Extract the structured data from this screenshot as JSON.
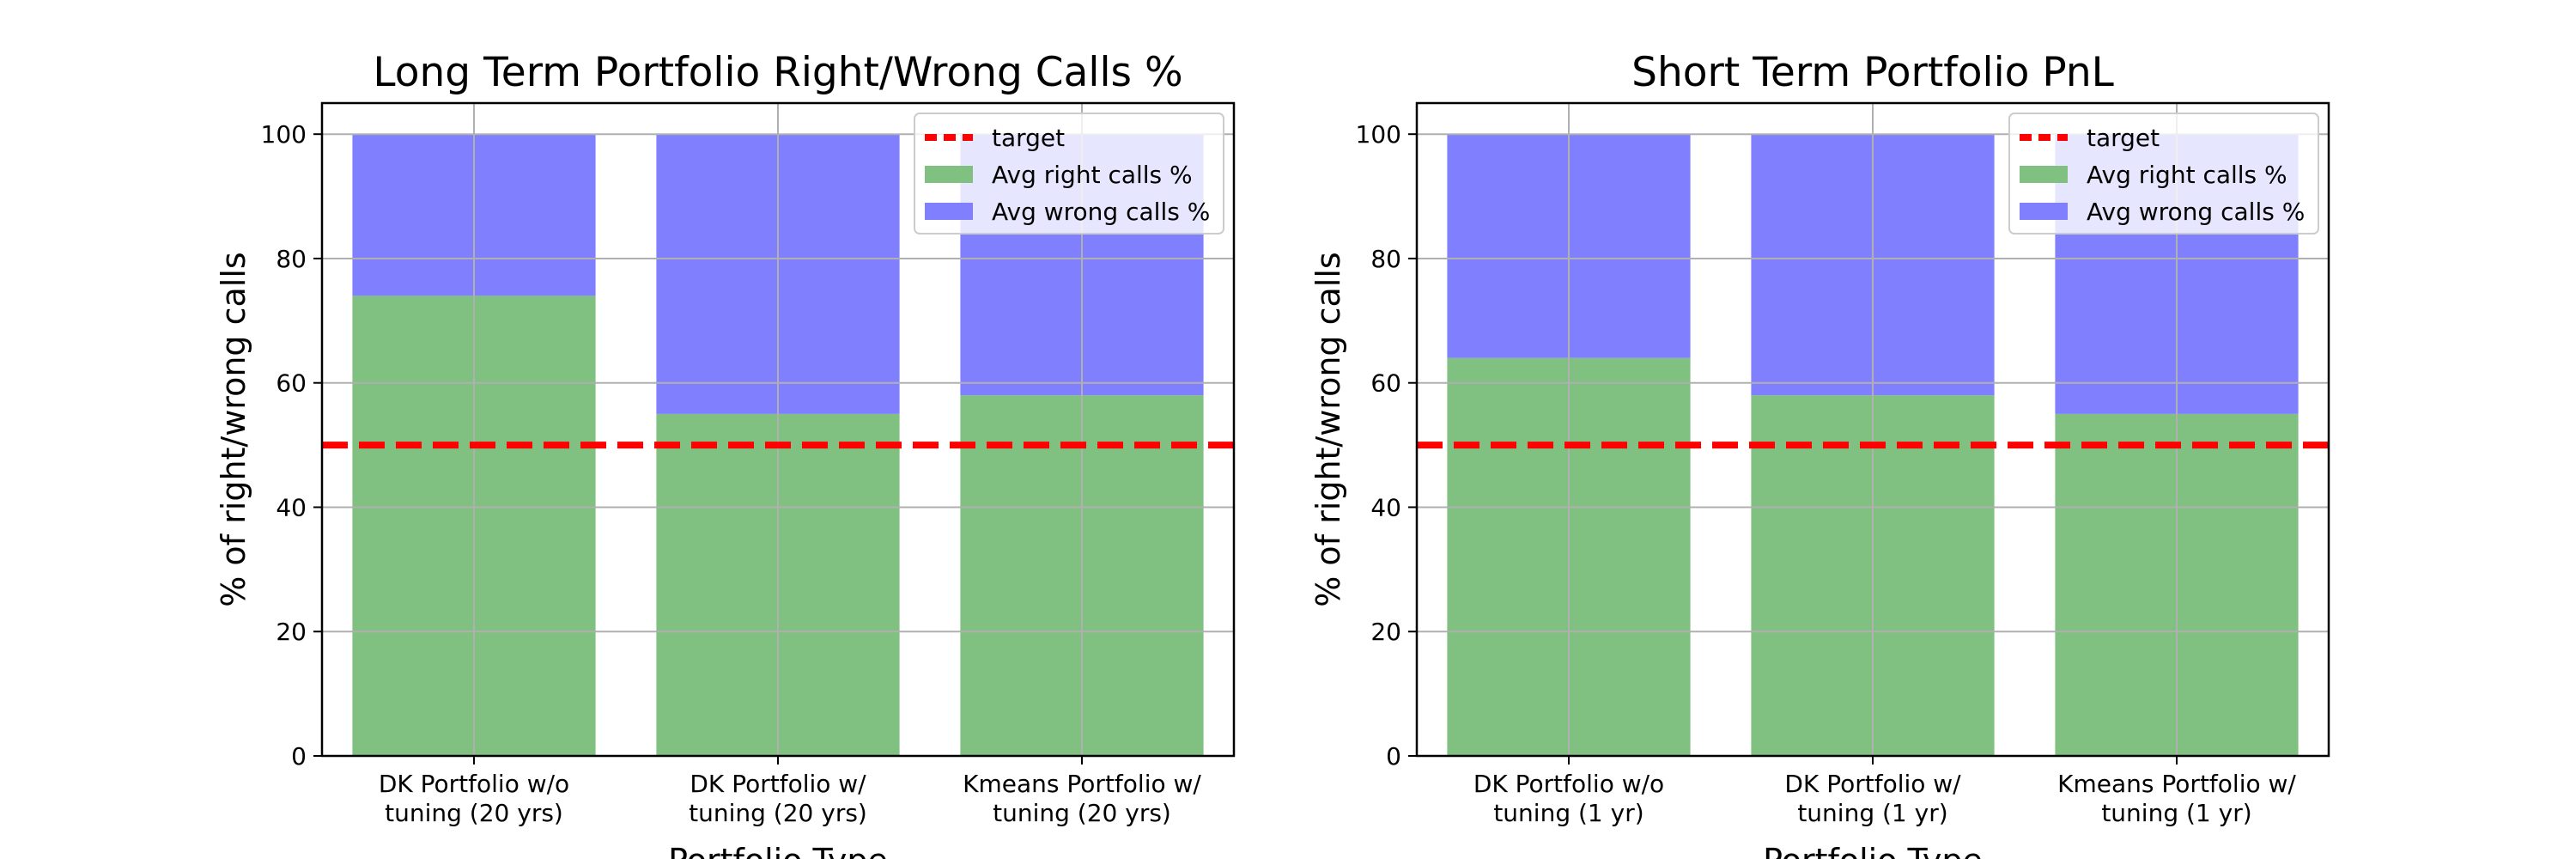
{
  "chart_data": [
    {
      "type": "bar",
      "stacked": true,
      "title": "Long Term Portfolio Right/Wrong Calls %",
      "xlabel": "Portfolio Type",
      "ylabel": "% of right/wrong calls",
      "categories": [
        [
          "DK Portfolio w/o",
          "tuning (20 yrs)"
        ],
        [
          "DK Portfolio w/",
          "tuning (20 yrs)"
        ],
        [
          "Kmeans Portfolio w/",
          "tuning (20 yrs)"
        ]
      ],
      "series": [
        {
          "name": "Avg right calls %",
          "color": "#80c080",
          "values": [
            74,
            55,
            58
          ]
        },
        {
          "name": "Avg wrong calls %",
          "color": "#8080ff",
          "values": [
            26,
            45,
            42
          ]
        }
      ],
      "reference_line": {
        "name": "target",
        "value": 50,
        "color": "#ff0000",
        "style": "dashed"
      },
      "ylim": [
        0,
        105
      ],
      "yticks": [
        "0",
        "20",
        "40",
        "60",
        "80",
        "100"
      ],
      "grid": true,
      "legend_position": "top-right"
    },
    {
      "type": "bar",
      "stacked": true,
      "title": "Short Term Portfolio PnL",
      "xlabel": "Portfolio Type",
      "ylabel": "% of right/wrong calls",
      "categories": [
        [
          "DK Portfolio w/o",
          "tuning (1 yr)"
        ],
        [
          "DK Portfolio w/",
          "tuning (1 yr)"
        ],
        [
          "Kmeans Portfolio w/",
          "tuning (1 yr)"
        ]
      ],
      "series": [
        {
          "name": "Avg right calls %",
          "color": "#80c080",
          "values": [
            64,
            58,
            55
          ]
        },
        {
          "name": "Avg wrong calls %",
          "color": "#8080ff",
          "values": [
            36,
            42,
            45
          ]
        }
      ],
      "reference_line": {
        "name": "target",
        "value": 50,
        "color": "#ff0000",
        "style": "dashed"
      },
      "ylim": [
        0,
        105
      ],
      "yticks": [
        "0",
        "20",
        "40",
        "60",
        "80",
        "100"
      ],
      "grid": true,
      "legend_position": "top-right"
    }
  ]
}
